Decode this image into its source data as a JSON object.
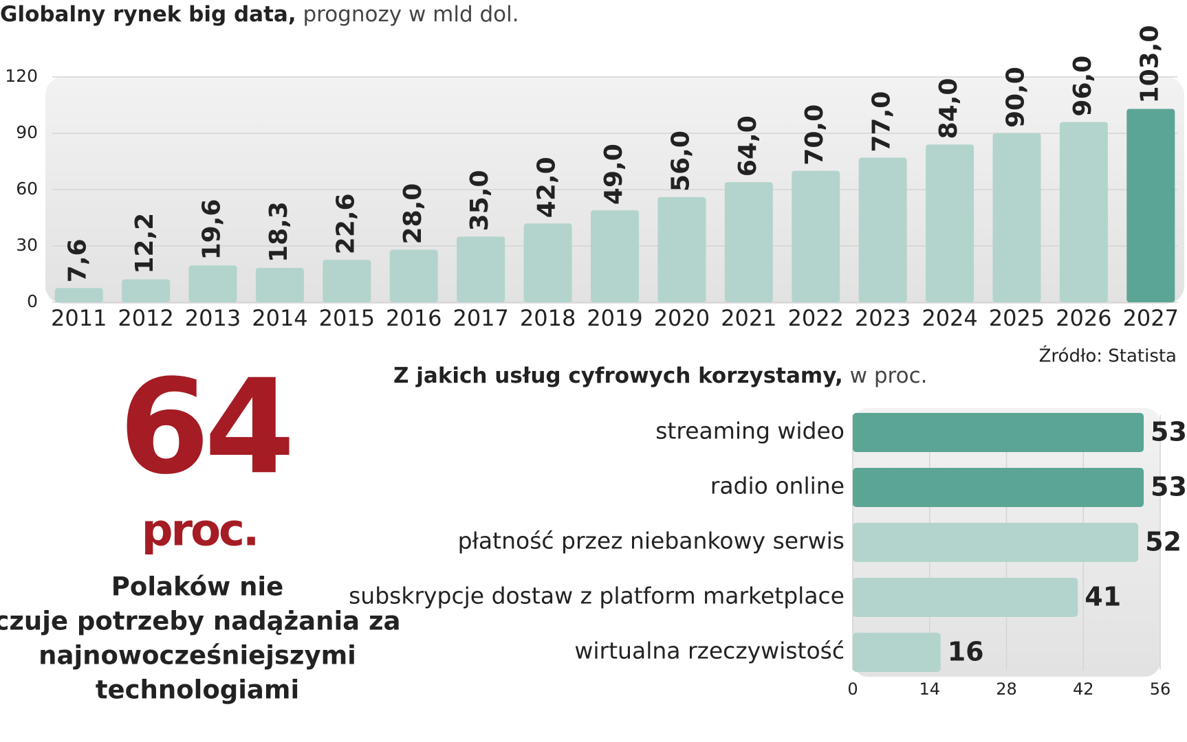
{
  "chart_data": [
    {
      "type": "bar",
      "title": "Globalny rynek big data,",
      "subtitle": "prognozy w mld dol.",
      "categories": [
        "2011",
        "2012",
        "2013",
        "2014",
        "2015",
        "2016",
        "2017",
        "2018",
        "2019",
        "2020",
        "2021",
        "2022",
        "2023",
        "2024",
        "2025",
        "2026",
        "2027"
      ],
      "values": [
        7.6,
        12.2,
        19.6,
        18.3,
        22.6,
        28.0,
        35.0,
        42.0,
        49.0,
        56.0,
        64.0,
        70.0,
        77.0,
        84.0,
        90.0,
        96.0,
        103.0
      ],
      "value_labels": [
        "7,6",
        "12,2",
        "19,6",
        "18,3",
        "22,6",
        "28,0",
        "35,0",
        "42,0",
        "49,0",
        "56,0",
        "64,0",
        "70,0",
        "77,0",
        "84,0",
        "90,0",
        "96,0",
        "103,0"
      ],
      "colors": [
        "#b2d4cc",
        "#b2d4cc",
        "#b2d4cc",
        "#b2d4cc",
        "#b2d4cc",
        "#b2d4cc",
        "#b2d4cc",
        "#b2d4cc",
        "#b2d4cc",
        "#b2d4cc",
        "#b2d4cc",
        "#b2d4cc",
        "#b2d4cc",
        "#b2d4cc",
        "#b2d4cc",
        "#b2d4cc",
        "#5ba594"
      ],
      "ylim": [
        0,
        120
      ],
      "yticks": [
        0,
        30,
        60,
        90,
        120
      ],
      "grid": true,
      "source": "Źródło: Statista"
    },
    {
      "type": "barh",
      "title": "Z jakich usług cyfrowych korzystamy,",
      "subtitle": "w proc.",
      "categories": [
        "streaming wideo",
        "radio online",
        "płatność przez niebankowy serwis",
        "subskrypcje dostaw z platform marketplace",
        "wirtualna rzeczywistość"
      ],
      "values": [
        53,
        53,
        52,
        41,
        16
      ],
      "colors": [
        "#5ba594",
        "#5ba594",
        "#b2d4cc",
        "#b2d4cc",
        "#b2d4cc"
      ],
      "xlim": [
        0,
        56
      ],
      "xticks": [
        0,
        14,
        28,
        42,
        56
      ],
      "grid": true
    }
  ],
  "callout": {
    "number": "64",
    "unit": "proc.",
    "lines": [
      "Polaków nie",
      "czuje potrzeby nadążania za",
      "najnowocześniejszymi",
      "technologiami"
    ]
  }
}
